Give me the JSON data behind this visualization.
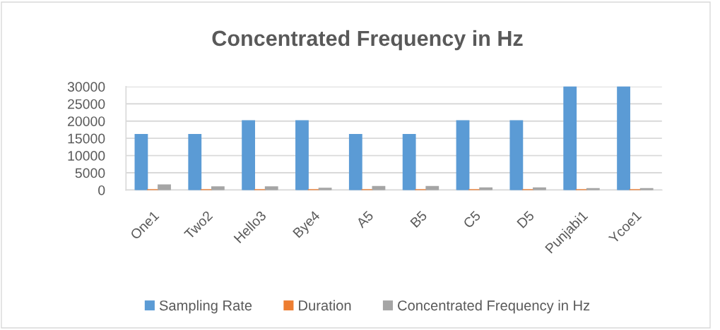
{
  "chart_data": {
    "type": "bar",
    "title": "Concentrated Frequency in Hz",
    "categories": [
      "One1",
      "Two2",
      "Hello3",
      "Bye4",
      "A5",
      "B5",
      "C5",
      "D5",
      "Punjabi1",
      "Ycoe1"
    ],
    "series": [
      {
        "name": "Sampling Rate",
        "color": "#5b9bd5",
        "values": [
          16000,
          16000,
          20000,
          20000,
          16000,
          16000,
          20000,
          20000,
          30000,
          30000
        ]
      },
      {
        "name": "Duration",
        "color": "#ed7d31",
        "values": [
          0,
          0,
          0,
          0,
          0,
          0,
          0,
          0,
          0,
          0
        ]
      },
      {
        "name": "Concentrated Frequency in Hz",
        "color": "#a5a5a5",
        "values": [
          1400,
          800,
          800,
          400,
          900,
          900,
          500,
          500,
          300,
          300
        ]
      }
    ],
    "ylim": [
      0,
      30000
    ],
    "yticks": [
      0,
      5000,
      10000,
      15000,
      20000,
      25000,
      30000
    ],
    "grid": "y",
    "legend": "bottom"
  }
}
